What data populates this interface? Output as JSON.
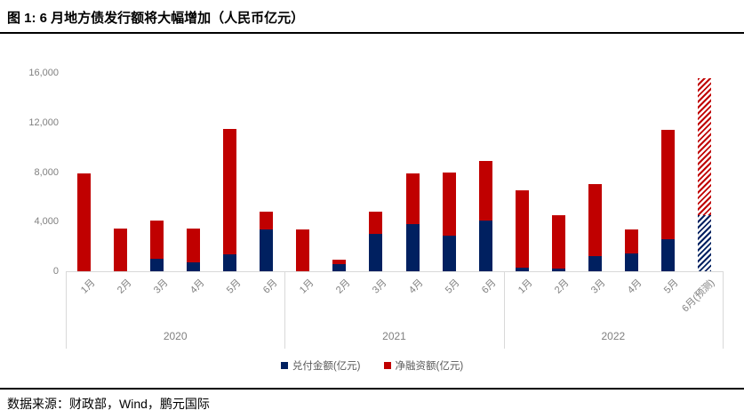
{
  "title": "图 1: 6 月地方债发行额将大幅增加（人民币亿元）",
  "footer": {
    "source_text": "数据来源：财政部，Wind，鹏元国际"
  },
  "colors": {
    "redemption": "#002060",
    "net_financing": "#c00000",
    "axis_line": "#d9d9d9",
    "tick_text": "#808080",
    "title_text": "#000000"
  },
  "legend": {
    "position": "bottom",
    "items": [
      {
        "label": "兑付金额(亿元)",
        "color": "#002060",
        "series": "redemption"
      },
      {
        "label": "净融资额(亿元)",
        "color": "#c00000",
        "series": "net_financing"
      }
    ]
  },
  "chart_data": {
    "type": "bar",
    "stacked": true,
    "title": "图 1: 6 月地方债发行额将大幅增加（人民币亿元）",
    "xlabel": "",
    "ylabel": "",
    "ylim": [
      0,
      16000
    ],
    "yticks": [
      0,
      4000,
      8000,
      12000,
      16000
    ],
    "ytick_labels": [
      "0",
      "4,000",
      "8,000",
      "12,000",
      "16,000"
    ],
    "grid": false,
    "legend_position": "bottom",
    "series_names": [
      "兑付金额(亿元)",
      "净融资额(亿元)"
    ],
    "groups": [
      {
        "label": "2020",
        "categories": [
          "1月",
          "2月",
          "3月",
          "4月",
          "5月",
          "6月"
        ],
        "redemption": [
          0,
          0,
          1000,
          700,
          1400,
          3400
        ],
        "net_financing": [
          7900,
          3450,
          3100,
          2750,
          10100,
          1400
        ],
        "forecast": [
          false,
          false,
          false,
          false,
          false,
          false
        ]
      },
      {
        "label": "2021",
        "categories": [
          "1月",
          "2月",
          "3月",
          "4月",
          "5月",
          "6月"
        ],
        "redemption": [
          0,
          600,
          3000,
          3800,
          2900,
          4100
        ],
        "net_financing": [
          3400,
          300,
          1800,
          4100,
          5100,
          4800
        ],
        "forecast": [
          false,
          false,
          false,
          false,
          false,
          false
        ]
      },
      {
        "label": "2022",
        "categories": [
          "1月",
          "2月",
          "3月",
          "4月",
          "5月",
          "6月(预测)"
        ],
        "redemption": [
          300,
          200,
          1200,
          1400,
          2600,
          4500
        ],
        "net_financing": [
          6200,
          4300,
          5800,
          2000,
          8800,
          11100
        ],
        "forecast": [
          false,
          false,
          false,
          false,
          false,
          true
        ]
      }
    ]
  }
}
